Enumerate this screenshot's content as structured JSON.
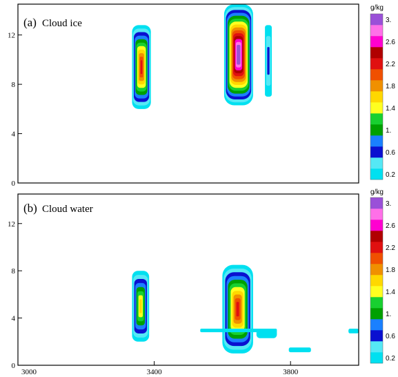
{
  "colors": {
    "cb": [
      "#00e0f0",
      "#55e8f5",
      "#0a10d0",
      "#1a80ff",
      "#00a000",
      "#18d030",
      "#ffff20",
      "#ffd800",
      "#f09000",
      "#f05000",
      "#e01010",
      "#b00000",
      "#ff00d0",
      "#ff70e8",
      "#9a50d8"
    ],
    "blue_edge": "#1060ff",
    "white_core": "#ffffff"
  },
  "chart_data": [
    {
      "type": "heatmap",
      "panel_label": "(a)",
      "title": "Cloud ice",
      "x_ticks": [
        3000,
        3400,
        3800
      ],
      "y_ticks": [
        0,
        4,
        8,
        12
      ],
      "xlim": [
        3000,
        4000
      ],
      "ylim": [
        0,
        14.5
      ],
      "colorbar": {
        "unit": "g/kg",
        "levels": [
          0.2,
          0.4,
          0.6,
          0.8,
          1.0,
          1.2,
          1.4,
          1.6,
          1.8,
          2.0,
          2.2,
          2.4,
          2.6,
          2.8,
          3.0
        ],
        "tick_labels": [
          "3.",
          "2.6",
          "2.2",
          "1.8",
          "1.4",
          "1.",
          "0.6",
          "0.2"
        ]
      },
      "features": [
        {
          "x0": 3335,
          "x1": 3390,
          "y0": 6.0,
          "y1": 12.8,
          "max": 2.3
        },
        {
          "x0": 3605,
          "x1": 3690,
          "y0": 6.3,
          "y1": 14.5,
          "max": 3.2
        },
        {
          "x0": 3725,
          "x1": 3745,
          "y0": 7.0,
          "y1": 12.8,
          "max": 0.6
        }
      ]
    },
    {
      "type": "heatmap",
      "panel_label": "(b)",
      "title": "Cloud water",
      "x_ticks": [
        3000,
        3400,
        3800
      ],
      "y_ticks": [
        0,
        4,
        8,
        12
      ],
      "xlim": [
        3000,
        4000
      ],
      "ylim": [
        0,
        14.5
      ],
      "colorbar": {
        "unit": "g/kg",
        "levels": [
          0.2,
          0.4,
          0.6,
          0.8,
          1.0,
          1.2,
          1.4,
          1.6,
          1.8,
          2.0,
          2.2,
          2.4,
          2.6,
          2.8,
          3.0
        ],
        "tick_labels": [
          "3.",
          "2.6",
          "2.2",
          "1.8",
          "1.4",
          "1.",
          "0.6",
          "0.2"
        ]
      },
      "features": [
        {
          "x0": 3335,
          "x1": 3385,
          "y0": 2.0,
          "y1": 8.0,
          "max": 1.5
        },
        {
          "x0": 3600,
          "x1": 3690,
          "y0": 1.0,
          "y1": 8.5,
          "max": 2.2
        },
        {
          "x0": 3535,
          "x1": 3760,
          "y0": 2.8,
          "y1": 3.1,
          "max": 0.2
        },
        {
          "x0": 3700,
          "x1": 3760,
          "y0": 2.3,
          "y1": 3.1,
          "max": 0.3
        },
        {
          "x0": 3795,
          "x1": 3860,
          "y0": 1.1,
          "y1": 1.5,
          "max": 0.2
        },
        {
          "x0": 3970,
          "x1": 4000,
          "y0": 2.7,
          "y1": 3.1,
          "max": 0.2
        }
      ]
    }
  ]
}
